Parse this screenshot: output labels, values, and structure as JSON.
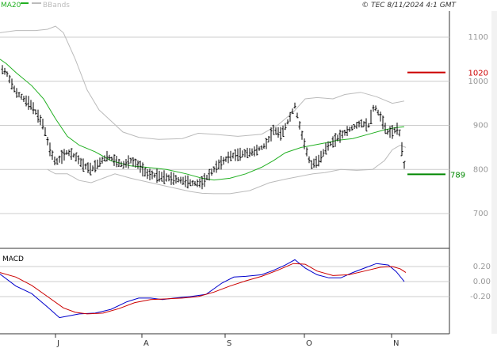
{
  "header": {
    "legend": [
      {
        "label": "MA20",
        "color": "#22b022"
      },
      {
        "label": "BBands",
        "color": "#bbbbbb"
      }
    ],
    "copyright": "© TEC 8/11/2024 4:1 GMT"
  },
  "colors": {
    "bars": "#000000",
    "ma20": "#22b022",
    "bbands": "#bbbbbb",
    "resistance": "#cc0000",
    "last_price": "#008800",
    "macd": "#0000cc",
    "signal": "#cc0000",
    "grid": "#cccccc"
  },
  "chart_data": [
    {
      "type": "ohlc",
      "title": "",
      "xlabel": "",
      "ylabel": "",
      "x_ticks": [
        "J",
        "A",
        "S",
        "O",
        "N"
      ],
      "y_ticks": [
        700,
        800,
        900,
        1000,
        1100
      ],
      "ylim": [
        590,
        1180
      ],
      "grid": true,
      "legend_position": "top-left",
      "series": [
        {
          "name": "MA20",
          "points": [
            [
              0,
              1050
            ],
            [
              8,
              1040
            ],
            [
              20,
              1020
            ],
            [
              40,
              990
            ],
            [
              55,
              960
            ],
            [
              70,
              915
            ],
            [
              85,
              875
            ],
            [
              100,
              855
            ],
            [
              120,
              840
            ],
            [
              140,
              820
            ],
            [
              150,
              815
            ],
            [
              165,
              808
            ],
            [
              185,
              805
            ],
            [
              210,
              800
            ],
            [
              235,
              790
            ],
            [
              255,
              780
            ],
            [
              270,
              776
            ],
            [
              290,
              780
            ],
            [
              310,
              790
            ],
            [
              330,
              805
            ],
            [
              345,
              820
            ],
            [
              360,
              838
            ],
            [
              380,
              850
            ],
            [
              395,
              855
            ],
            [
              410,
              860
            ],
            [
              425,
              866
            ],
            [
              445,
              870
            ],
            [
              465,
              880
            ],
            [
              485,
              890
            ],
            [
              500,
              895
            ],
            [
              510,
              897
            ]
          ]
        },
        {
          "name": "BBands",
          "points_upper": [
            [
              0,
              1110
            ],
            [
              20,
              1115
            ],
            [
              45,
              1115
            ],
            [
              60,
              1118
            ],
            [
              70,
              1125
            ],
            [
              80,
              1110
            ],
            [
              95,
              1050
            ],
            [
              110,
              980
            ],
            [
              125,
              935
            ],
            [
              140,
              910
            ],
            [
              155,
              885
            ],
            [
              175,
              873
            ],
            [
              200,
              868
            ],
            [
              230,
              870
            ],
            [
              250,
              882
            ],
            [
              270,
              880
            ],
            [
              300,
              875
            ],
            [
              330,
              880
            ],
            [
              350,
              900
            ],
            [
              370,
              930
            ],
            [
              385,
              960
            ],
            [
              400,
              963
            ],
            [
              420,
              960
            ],
            [
              435,
              970
            ],
            [
              455,
              975
            ],
            [
              475,
              965
            ],
            [
              495,
              950
            ],
            [
              510,
              955
            ]
          ],
          "points_lower": [
            [
              60,
              800
            ],
            [
              70,
              790
            ],
            [
              85,
              790
            ],
            [
              100,
              775
            ],
            [
              115,
              770
            ],
            [
              130,
              780
            ],
            [
              145,
              790
            ],
            [
              165,
              780
            ],
            [
              190,
              770
            ],
            [
              215,
              760
            ],
            [
              240,
              750
            ],
            [
              255,
              746
            ],
            [
              270,
              745
            ],
            [
              290,
              745
            ],
            [
              315,
              752
            ],
            [
              340,
              770
            ],
            [
              360,
              778
            ],
            [
              380,
              785
            ],
            [
              395,
              790
            ],
            [
              410,
              793
            ],
            [
              430,
              800
            ],
            [
              450,
              798
            ],
            [
              470,
              800
            ],
            [
              485,
              820
            ],
            [
              495,
              845
            ],
            [
              505,
              855
            ],
            [
              512,
              850
            ]
          ]
        }
      ],
      "annotations": {
        "resistance": {
          "value": 1020,
          "label": "1020"
        },
        "last_price": {
          "value": 789,
          "label": "789"
        }
      }
    },
    {
      "type": "line",
      "title": "MACD",
      "xlabel": "",
      "ylabel": "",
      "y_ticks": [
        0.2,
        0,
        -0.2
      ],
      "y_tick_labels": [
        "0.20",
        "0.00",
        "-0.20"
      ],
      "ylim": [
        -0.5,
        0.38
      ],
      "series": [
        {
          "name": "",
          "color": "#0000cc",
          "points": [
            [
              0,
              0.1
            ],
            [
              20,
              -0.06
            ],
            [
              40,
              -0.16
            ],
            [
              60,
              -0.34
            ],
            [
              75,
              -0.48
            ],
            [
              85,
              -0.46
            ],
            [
              100,
              -0.43
            ],
            [
              120,
              -0.42
            ],
            [
              140,
              -0.37
            ],
            [
              160,
              -0.27
            ],
            [
              175,
              -0.22
            ],
            [
              190,
              -0.22
            ],
            [
              205,
              -0.24
            ],
            [
              220,
              -0.22
            ],
            [
              240,
              -0.2
            ],
            [
              260,
              -0.17
            ],
            [
              280,
              -0.02
            ],
            [
              295,
              0.06
            ],
            [
              310,
              0.07
            ],
            [
              330,
              0.09
            ],
            [
              345,
              0.15
            ],
            [
              360,
              0.22
            ],
            [
              372,
              0.29
            ],
            [
              385,
              0.18
            ],
            [
              400,
              0.09
            ],
            [
              415,
              0.05
            ],
            [
              430,
              0.05
            ],
            [
              445,
              0.12
            ],
            [
              460,
              0.18
            ],
            [
              475,
              0.24
            ],
            [
              490,
              0.22
            ],
            [
              500,
              0.13
            ],
            [
              510,
              0.0
            ]
          ]
        },
        {
          "name": "",
          "color": "#cc0000",
          "points": [
            [
              0,
              0.12
            ],
            [
              20,
              0.06
            ],
            [
              40,
              -0.05
            ],
            [
              60,
              -0.2
            ],
            [
              80,
              -0.35
            ],
            [
              95,
              -0.41
            ],
            [
              110,
              -0.43
            ],
            [
              130,
              -0.42
            ],
            [
              150,
              -0.36
            ],
            [
              170,
              -0.28
            ],
            [
              190,
              -0.24
            ],
            [
              210,
              -0.23
            ],
            [
              230,
              -0.22
            ],
            [
              250,
              -0.2
            ],
            [
              270,
              -0.14
            ],
            [
              290,
              -0.06
            ],
            [
              310,
              0.01
            ],
            [
              330,
              0.07
            ],
            [
              350,
              0.15
            ],
            [
              370,
              0.24
            ],
            [
              385,
              0.23
            ],
            [
              400,
              0.14
            ],
            [
              420,
              0.08
            ],
            [
              440,
              0.09
            ],
            [
              460,
              0.14
            ],
            [
              480,
              0.19
            ],
            [
              495,
              0.2
            ],
            [
              505,
              0.17
            ],
            [
              512,
              0.12
            ]
          ]
        }
      ]
    }
  ]
}
